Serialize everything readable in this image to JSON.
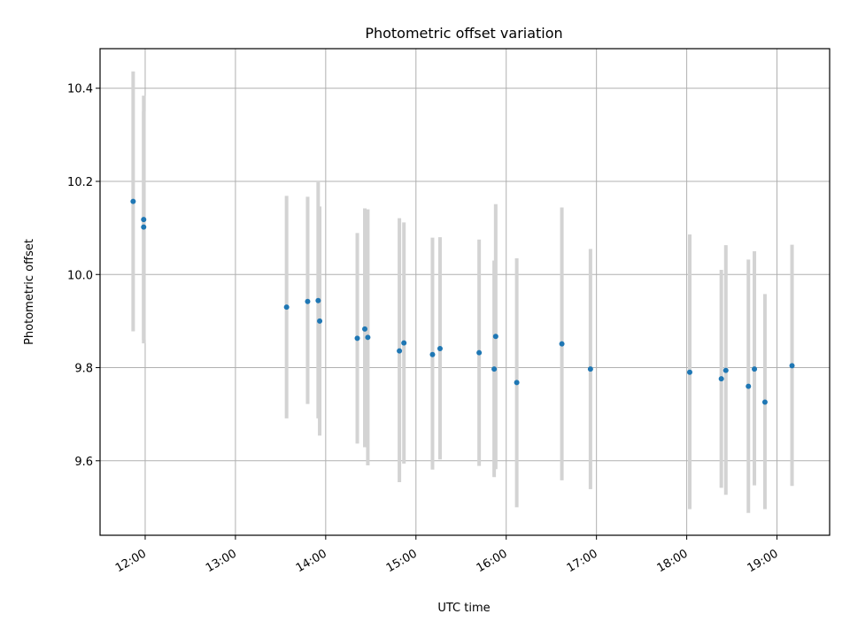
{
  "chart_data": {
    "type": "scatter",
    "title": "Photometric offset variation",
    "xlabel": "UTC time",
    "ylabel": "Photometric offset",
    "xlim": [
      "11:30",
      "19:35"
    ],
    "ylim": [
      9.44,
      10.485
    ],
    "xticks": [
      "12:00",
      "13:00",
      "14:00",
      "15:00",
      "16:00",
      "17:00",
      "18:00",
      "19:00"
    ],
    "yticks": [
      "9.6",
      "9.8",
      "10.0",
      "10.2",
      "10.4"
    ],
    "grid": true,
    "colors": {
      "points": "#1f77b4",
      "errorbars": "#d3d3d3",
      "grid": "#b0b0b0"
    },
    "series": [
      {
        "points": [
          {
            "x": "11:52",
            "y": 10.157,
            "y_low": 9.878,
            "y_high": 10.436
          },
          {
            "x": "11:59",
            "y": 10.118,
            "y_low": 9.852,
            "y_high": 10.384
          },
          {
            "x": "11:59",
            "y": 10.102,
            "y_low": 9.86,
            "y_high": 10.35
          },
          {
            "x": "13:34",
            "y": 9.93,
            "y_low": 9.691,
            "y_high": 10.169
          },
          {
            "x": "13:48",
            "y": 9.942,
            "y_low": 9.722,
            "y_high": 10.167
          },
          {
            "x": "13:55",
            "y": 9.944,
            "y_low": 9.691,
            "y_high": 10.198
          },
          {
            "x": "13:56",
            "y": 9.9,
            "y_low": 9.654,
            "y_high": 10.146
          },
          {
            "x": "14:21",
            "y": 9.863,
            "y_low": 9.637,
            "y_high": 10.089
          },
          {
            "x": "14:26",
            "y": 9.883,
            "y_low": 9.629,
            "y_high": 10.142
          },
          {
            "x": "14:28",
            "y": 9.865,
            "y_low": 9.59,
            "y_high": 10.14
          },
          {
            "x": "14:49",
            "y": 9.836,
            "y_low": 9.554,
            "y_high": 10.121
          },
          {
            "x": "14:52",
            "y": 9.853,
            "y_low": 9.594,
            "y_high": 10.112
          },
          {
            "x": "15:11",
            "y": 9.828,
            "y_low": 9.581,
            "y_high": 10.079
          },
          {
            "x": "15:16",
            "y": 9.841,
            "y_low": 9.603,
            "y_high": 10.08
          },
          {
            "x": "15:42",
            "y": 9.832,
            "y_low": 9.589,
            "y_high": 10.075
          },
          {
            "x": "15:52",
            "y": 9.797,
            "y_low": 9.565,
            "y_high": 10.03
          },
          {
            "x": "15:53",
            "y": 9.867,
            "y_low": 9.582,
            "y_high": 10.151
          },
          {
            "x": "16:07",
            "y": 9.768,
            "y_low": 9.5,
            "y_high": 10.035
          },
          {
            "x": "16:37",
            "y": 9.851,
            "y_low": 9.558,
            "y_high": 10.144
          },
          {
            "x": "16:56",
            "y": 9.797,
            "y_low": 9.539,
            "y_high": 10.055
          },
          {
            "x": "18:02",
            "y": 9.79,
            "y_low": 9.496,
            "y_high": 10.086
          },
          {
            "x": "18:23",
            "y": 9.776,
            "y_low": 9.542,
            "y_high": 10.01
          },
          {
            "x": "18:26",
            "y": 9.794,
            "y_low": 9.527,
            "y_high": 10.063
          },
          {
            "x": "18:41",
            "y": 9.76,
            "y_low": 9.488,
            "y_high": 10.032
          },
          {
            "x": "18:45",
            "y": 9.797,
            "y_low": 9.547,
            "y_high": 10.05
          },
          {
            "x": "18:52",
            "y": 9.726,
            "y_low": 9.496,
            "y_high": 9.958
          },
          {
            "x": "19:10",
            "y": 9.804,
            "y_low": 9.546,
            "y_high": 10.064
          }
        ]
      }
    ]
  }
}
